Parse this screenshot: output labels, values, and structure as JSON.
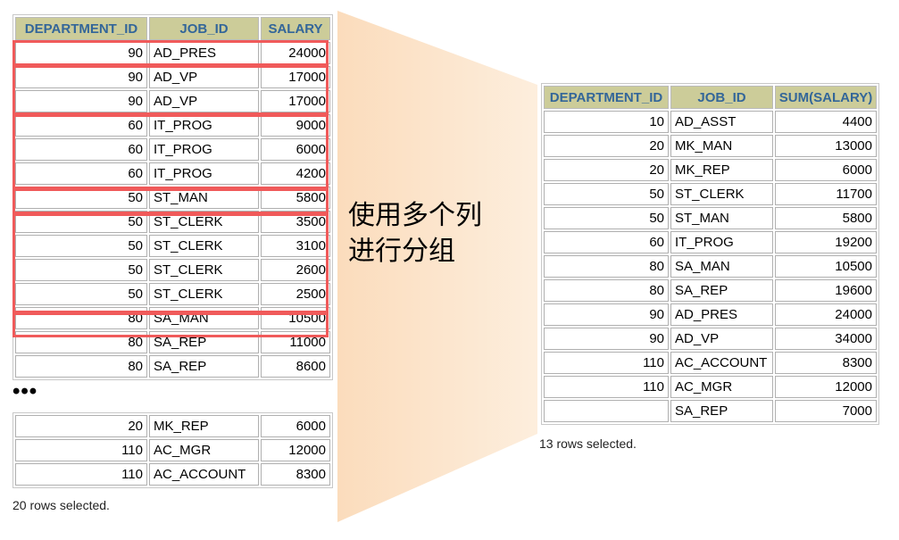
{
  "source_table": {
    "headers": [
      "DEPARTMENT_ID",
      "JOB_ID",
      "SALARY"
    ],
    "rows": [
      [
        "90",
        "AD_PRES",
        "24000"
      ],
      [
        "90",
        "AD_VP",
        "17000"
      ],
      [
        "90",
        "AD_VP",
        "17000"
      ],
      [
        "60",
        "IT_PROG",
        "9000"
      ],
      [
        "60",
        "IT_PROG",
        "6000"
      ],
      [
        "60",
        "IT_PROG",
        "4200"
      ],
      [
        "50",
        "ST_MAN",
        "5800"
      ],
      [
        "50",
        "ST_CLERK",
        "3500"
      ],
      [
        "50",
        "ST_CLERK",
        "3100"
      ],
      [
        "50",
        "ST_CLERK",
        "2600"
      ],
      [
        "50",
        "ST_CLERK",
        "2500"
      ],
      [
        "80",
        "SA_MAN",
        "10500"
      ],
      [
        "80",
        "SA_REP",
        "11000"
      ],
      [
        "80",
        "SA_REP",
        "8600"
      ]
    ],
    "ellipsis": "•••",
    "tail_rows": [
      [
        "20",
        "MK_REP",
        "6000"
      ],
      [
        "110",
        "AC_MGR",
        "12000"
      ],
      [
        "110",
        "AC_ACCOUNT",
        "8300"
      ]
    ],
    "footer": "20 rows selected."
  },
  "caption": [
    "使用多个列",
    "进行分组"
  ],
  "result_table": {
    "headers": [
      "DEPARTMENT_ID",
      "JOB_ID",
      "SUM(SALARY)"
    ],
    "rows": [
      [
        "10",
        "AD_ASST",
        "4400"
      ],
      [
        "20",
        "MK_MAN",
        "13000"
      ],
      [
        "20",
        "MK_REP",
        "6000"
      ],
      [
        "50",
        "ST_CLERK",
        "11700"
      ],
      [
        "50",
        "ST_MAN",
        "5800"
      ],
      [
        "60",
        "IT_PROG",
        "19200"
      ],
      [
        "80",
        "SA_MAN",
        "10500"
      ],
      [
        "80",
        "SA_REP",
        "19600"
      ],
      [
        "90",
        "AD_PRES",
        "24000"
      ],
      [
        "90",
        "AD_VP",
        "34000"
      ],
      [
        "110",
        "AC_ACCOUNT",
        "8300"
      ],
      [
        "110",
        "AC_MGR",
        "12000"
      ],
      [
        "",
        "SA_REP",
        "7000"
      ]
    ],
    "footer": "13 rows selected."
  },
  "colors": {
    "header_bg": "#cccc99",
    "header_text": "#336699",
    "group_box": "#f05a5a",
    "funnel": "#fde3c6"
  }
}
